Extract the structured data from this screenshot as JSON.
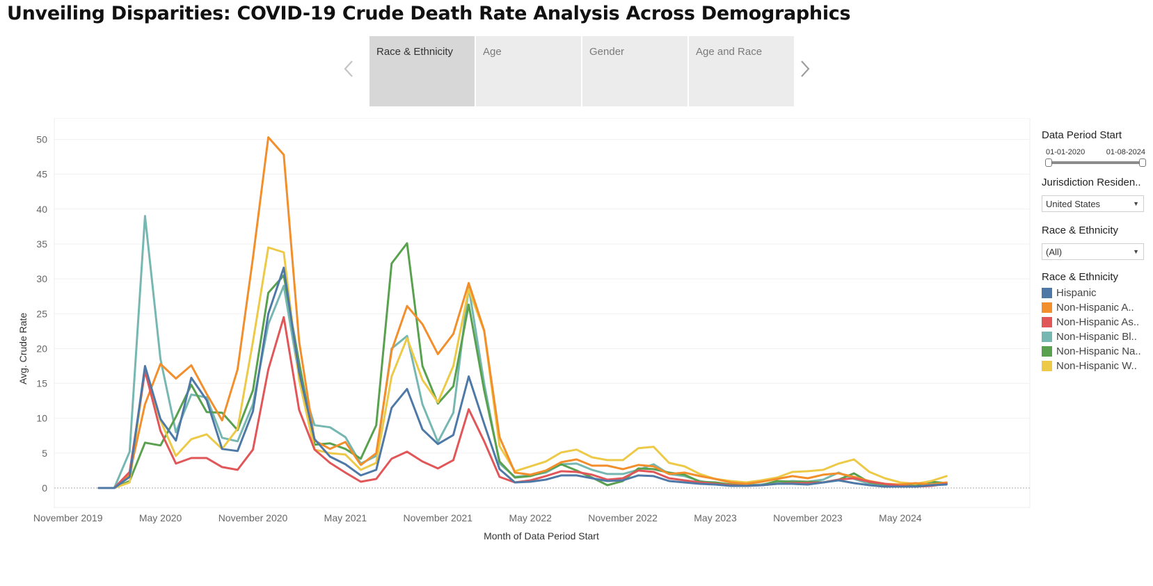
{
  "title": "Unveiling Disparities: COVID-19 Crude Death Rate Analysis Across Demographics",
  "tabs": [
    {
      "label": "Race & Ethnicity",
      "active": true
    },
    {
      "label": "Age",
      "active": false
    },
    {
      "label": "Gender",
      "active": false
    },
    {
      "label": "Age and Race",
      "active": false
    }
  ],
  "filters": {
    "date_heading": "Data Period Start",
    "date_start": "01-01-2020",
    "date_end": "01-08-2024",
    "jurisdiction_heading": "Jurisdiction Residen..",
    "jurisdiction_value": "United States",
    "race_heading": "Race & Ethnicity",
    "race_value": "(All)"
  },
  "legend": {
    "heading": "Race & Ethnicity",
    "items": [
      {
        "label": "Hispanic",
        "color": "#4e79a7"
      },
      {
        "label": "Non-Hispanic A..",
        "color": "#f28e2b"
      },
      {
        "label": "Non-Hispanic As..",
        "color": "#e15759"
      },
      {
        "label": "Non-Hispanic Bl..",
        "color": "#76b7b2"
      },
      {
        "label": "Non-Hispanic Na..",
        "color": "#59a14f"
      },
      {
        "label": "Non-Hispanic W..",
        "color": "#edc948"
      }
    ]
  },
  "chart_data": {
    "type": "line",
    "xlabel": "Month of Data Period Start",
    "ylabel": "Avg. Crude Rate",
    "ylim": [
      -2.5,
      53
    ],
    "yticks": [
      0,
      5,
      10,
      15,
      20,
      25,
      30,
      35,
      40,
      45,
      50
    ],
    "xticks": [
      {
        "label": "November 2019",
        "month": "2019-11"
      },
      {
        "label": "May 2020",
        "month": "2020-05"
      },
      {
        "label": "November 2020",
        "month": "2020-11"
      },
      {
        "label": "May 2021",
        "month": "2021-05"
      },
      {
        "label": "November 2021",
        "month": "2021-11"
      },
      {
        "label": "May 2022",
        "month": "2022-05"
      },
      {
        "label": "November 2022",
        "month": "2022-11"
      },
      {
        "label": "May 2023",
        "month": "2023-05"
      },
      {
        "label": "November 2023",
        "month": "2023-11"
      },
      {
        "label": "May 2024",
        "month": "2024-05"
      }
    ],
    "x": [
      "2020-01",
      "2020-02",
      "2020-03",
      "2020-04",
      "2020-05",
      "2020-06",
      "2020-07",
      "2020-08",
      "2020-09",
      "2020-10",
      "2020-11",
      "2020-12",
      "2021-01",
      "2021-02",
      "2021-03",
      "2021-04",
      "2021-05",
      "2021-06",
      "2021-07",
      "2021-08",
      "2021-09",
      "2021-10",
      "2021-11",
      "2021-12",
      "2022-01",
      "2022-02",
      "2022-03",
      "2022-04",
      "2022-05",
      "2022-06",
      "2022-07",
      "2022-08",
      "2022-09",
      "2022-10",
      "2022-11",
      "2022-12",
      "2023-01",
      "2023-02",
      "2023-03",
      "2023-04",
      "2023-05",
      "2023-06",
      "2023-07",
      "2023-08",
      "2023-09",
      "2023-10",
      "2023-11",
      "2023-12",
      "2024-01",
      "2024-02",
      "2024-03",
      "2024-04",
      "2024-05",
      "2024-06",
      "2024-07",
      "2024-08"
    ],
    "series": [
      {
        "name": "Non-Hispanic Bl..",
        "color": "#76b7b2",
        "values": [
          0,
          0,
          5.2,
          39,
          18.5,
          8,
          13.4,
          13,
          7.2,
          6.7,
          12,
          23.5,
          29,
          16,
          9,
          8.7,
          7.3,
          3.5,
          4.6,
          20,
          21.8,
          12,
          6.6,
          10.8,
          28.8,
          15,
          3.5,
          1.6,
          1.8,
          2.2,
          3.4,
          3.5,
          2.6,
          2,
          2,
          2.6,
          3.4,
          2,
          1.7,
          1,
          0.6,
          0.5,
          0.4,
          0.5,
          0.8,
          1,
          0.9,
          1.2,
          2.2,
          1.3,
          0.6,
          0.3,
          0.3,
          0.5,
          0.7,
          0.7
        ]
      },
      {
        "name": "Non-Hispanic Na..",
        "color": "#59a14f",
        "values": [
          0,
          0,
          1,
          6.5,
          6.1,
          10.2,
          14.8,
          10.9,
          10.8,
          8.3,
          14,
          28,
          30.5,
          18,
          6.2,
          6.4,
          5.6,
          4.2,
          9,
          32.2,
          35.1,
          17.5,
          12.1,
          14.6,
          26.3,
          14,
          3.8,
          1.5,
          1.7,
          2.4,
          3.4,
          2.5,
          1.5,
          0.4,
          1,
          2.8,
          2.7,
          2.2,
          1.9,
          0.9,
          0.8,
          0.5,
          0.4,
          0.4,
          1,
          0.9,
          0.9,
          0.8,
          1.2,
          2.1,
          0.8,
          0.5,
          0.4,
          0.3,
          0.9,
          0.7
        ]
      },
      {
        "name": "Non-Hispanic W..",
        "color": "#edc948",
        "values": [
          0,
          0,
          0.8,
          17,
          9.7,
          4.6,
          7,
          7.7,
          5.6,
          8.5,
          21,
          34.5,
          33.8,
          15.5,
          5.5,
          5,
          4.8,
          2.6,
          3.6,
          16,
          21.5,
          15.5,
          12.3,
          17.5,
          28.5,
          22.5,
          6,
          2.4,
          3.1,
          3.8,
          5.1,
          5.5,
          4.4,
          4,
          4,
          5.7,
          5.9,
          3.6,
          3.1,
          2,
          1.3,
          1,
          0.8,
          1.1,
          1.5,
          2.3,
          2.4,
          2.6,
          3.5,
          4.1,
          2.3,
          1.4,
          0.8,
          0.6,
          1,
          1.7
        ]
      },
      {
        "name": "Non-Hispanic A..",
        "color": "#f28e2b",
        "values": [
          0,
          0,
          2,
          12,
          17.8,
          15.7,
          17.6,
          13.5,
          9.7,
          17,
          33,
          50.3,
          47.8,
          21,
          6.8,
          5.6,
          6.6,
          3.3,
          5,
          19.7,
          26.1,
          23.5,
          19.2,
          22.1,
          29.4,
          22.6,
          7.3,
          2.2,
          1.9,
          2.5,
          3.7,
          4.1,
          3.2,
          3.2,
          2.7,
          3.3,
          3.1,
          2,
          2.2,
          1.7,
          1.3,
          0.8,
          0.6,
          0.9,
          1.3,
          1.7,
          1.4,
          1.9,
          2.1,
          1.6,
          1,
          0.6,
          0.5,
          0.7,
          0.5,
          0.8
        ]
      },
      {
        "name": "Non-Hispanic As..",
        "color": "#e15759",
        "values": [
          0,
          0,
          2.3,
          16.8,
          8.2,
          3.5,
          4.3,
          4.3,
          3,
          2.6,
          5.5,
          17,
          24.5,
          11.2,
          5.5,
          3.6,
          2.2,
          0.9,
          1.3,
          4.2,
          5.2,
          3.8,
          2.8,
          4,
          11.3,
          6.7,
          1.6,
          0.8,
          1.1,
          1.7,
          2.4,
          2.3,
          1.9,
          1.2,
          1.4,
          2.5,
          2.3,
          1.4,
          1.1,
          0.8,
          0.6,
          0.4,
          0.3,
          0.4,
          0.6,
          0.7,
          0.7,
          0.8,
          1.2,
          1.4,
          0.9,
          0.6,
          0.3,
          0.2,
          0.3,
          0.6
        ]
      },
      {
        "name": "Hispanic",
        "color": "#4e79a7",
        "values": [
          0,
          0,
          1.6,
          17.5,
          9.9,
          6.8,
          15.8,
          12.6,
          5.6,
          5.3,
          11,
          25,
          31.6,
          16.6,
          7,
          4.5,
          3.4,
          1.8,
          2.6,
          11.5,
          14.2,
          8.4,
          6.3,
          7.6,
          16,
          9.2,
          2.7,
          0.8,
          0.9,
          1.2,
          1.8,
          1.8,
          1.4,
          1,
          1.1,
          1.8,
          1.7,
          1,
          0.8,
          0.6,
          0.5,
          0.3,
          0.3,
          0.4,
          0.6,
          0.6,
          0.5,
          0.8,
          1.1,
          0.7,
          0.4,
          0.2,
          0.2,
          0.2,
          0.4,
          0.5
        ]
      }
    ]
  }
}
